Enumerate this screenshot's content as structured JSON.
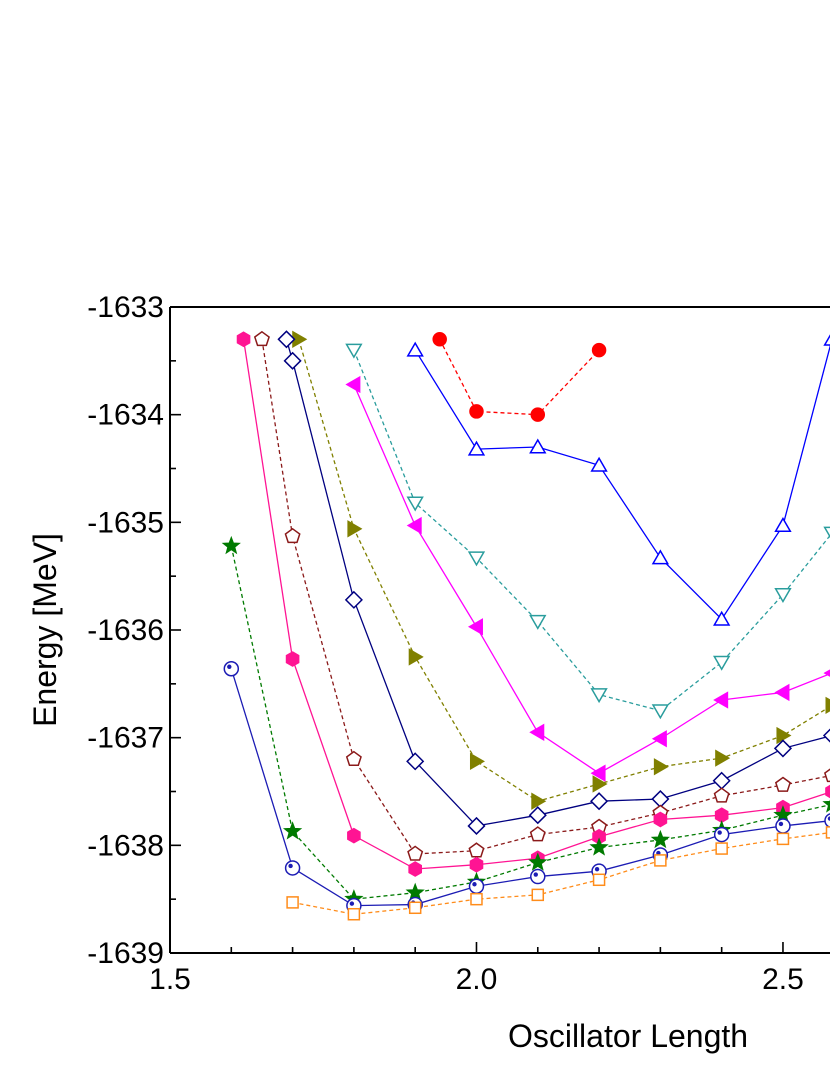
{
  "chart_data": {
    "type": "line",
    "xlabel": "Oscillator Length",
    "ylabel": "Energy [MeV]",
    "xlim": [
      1.5,
      2.58
    ],
    "ylim": [
      -1639,
      -1633
    ],
    "x_ticks": [
      1.5,
      2.0,
      2.5
    ],
    "x_tick_labels": [
      "1.5",
      "2.0",
      "2.5"
    ],
    "y_ticks": [
      -1633,
      -1634,
      -1635,
      -1636,
      -1637,
      -1638,
      -1639
    ],
    "y_tick_labels": [
      "-1633",
      "-1634",
      "-1635",
      "-1636",
      "-1637",
      "-1638",
      "-1639"
    ],
    "grid": false,
    "legend": "none",
    "series": [
      {
        "color": "#ff0000",
        "marker": "circle-filled",
        "dash": true,
        "x": [
          1.94,
          2.0,
          2.1,
          2.2
        ],
        "y": [
          -1633.3,
          -1633.97,
          -1634.0,
          -1633.4
        ]
      },
      {
        "color": "#0000ff",
        "marker": "triangle-up-open",
        "dash": false,
        "x": [
          1.9,
          2.0,
          2.1,
          2.2,
          2.3,
          2.4,
          2.5,
          2.58
        ],
        "y": [
          -1633.4,
          -1634.32,
          -1634.3,
          -1634.47,
          -1635.33,
          -1635.9,
          -1635.03,
          -1633.3
        ]
      },
      {
        "color": "#2a9d9d",
        "marker": "triangle-down-open",
        "dash": true,
        "x": [
          1.8,
          1.9,
          2.0,
          2.1,
          2.2,
          2.3,
          2.4,
          2.5,
          2.58
        ],
        "y": [
          -1633.4,
          -1634.82,
          -1635.33,
          -1635.92,
          -1636.6,
          -1636.75,
          -1636.3,
          -1635.67,
          -1635.1
        ]
      },
      {
        "color": "#ff00ff",
        "marker": "triangle-left-filled",
        "dash": false,
        "x": [
          1.8,
          1.9,
          2.0,
          2.1,
          2.2,
          2.3,
          2.4,
          2.5,
          2.58
        ],
        "y": [
          -1633.72,
          -1635.03,
          -1635.97,
          -1636.95,
          -1637.33,
          -1637.01,
          -1636.65,
          -1636.58,
          -1636.4
        ]
      },
      {
        "color": "#808000",
        "marker": "triangle-right-filled",
        "dash": true,
        "x": [
          1.71,
          1.8,
          1.9,
          2.0,
          2.1,
          2.2,
          2.3,
          2.4,
          2.5,
          2.58
        ],
        "y": [
          -1633.3,
          -1635.06,
          -1636.25,
          -1637.22,
          -1637.59,
          -1637.43,
          -1637.27,
          -1637.19,
          -1636.98,
          -1636.7
        ]
      },
      {
        "color": "#000080",
        "marker": "diamond-open",
        "dash": false,
        "x": [
          1.69,
          1.7,
          1.8,
          1.9,
          2.0,
          2.1,
          2.2,
          2.3,
          2.4,
          2.5,
          2.58
        ],
        "y": [
          -1633.3,
          -1633.5,
          -1635.72,
          -1637.22,
          -1637.82,
          -1637.72,
          -1637.59,
          -1637.57,
          -1637.4,
          -1637.1,
          -1636.98
        ]
      },
      {
        "color": "#8b1a1a",
        "marker": "pentagon-open",
        "dash": true,
        "x": [
          1.65,
          1.7,
          1.8,
          1.9,
          2.0,
          2.1,
          2.2,
          2.3,
          2.4,
          2.5,
          2.58
        ],
        "y": [
          -1633.3,
          -1635.13,
          -1637.2,
          -1638.08,
          -1638.05,
          -1637.9,
          -1637.83,
          -1637.7,
          -1637.54,
          -1637.44,
          -1637.35
        ]
      },
      {
        "color": "#ff1493",
        "marker": "hexagon-filled",
        "dash": false,
        "x": [
          1.62,
          1.7,
          1.8,
          1.9,
          2.0,
          2.1,
          2.2,
          2.3,
          2.4,
          2.5,
          2.58
        ],
        "y": [
          -1633.3,
          -1636.27,
          -1637.91,
          -1638.22,
          -1638.18,
          -1638.12,
          -1637.92,
          -1637.76,
          -1637.72,
          -1637.65,
          -1637.5
        ]
      },
      {
        "color": "#007a00",
        "marker": "star-filled",
        "dash": true,
        "x": [
          1.6,
          1.7,
          1.8,
          1.9,
          2.0,
          2.1,
          2.2,
          2.3,
          2.4,
          2.5,
          2.58
        ],
        "y": [
          -1635.22,
          -1637.87,
          -1638.5,
          -1638.44,
          -1638.34,
          -1638.16,
          -1638.02,
          -1637.95,
          -1637.86,
          -1637.72,
          -1637.62
        ]
      },
      {
        "color": "#1c1cb4",
        "marker": "circle-dot-open",
        "dash": false,
        "x": [
          1.6,
          1.7,
          1.8,
          1.9,
          2.0,
          2.1,
          2.2,
          2.3,
          2.4,
          2.5,
          2.58
        ],
        "y": [
          -1636.36,
          -1638.21,
          -1638.56,
          -1638.55,
          -1638.38,
          -1638.29,
          -1638.24,
          -1638.09,
          -1637.9,
          -1637.82,
          -1637.77
        ]
      },
      {
        "color": "#ff8c1a",
        "marker": "square-open",
        "dash": true,
        "x": [
          1.7,
          1.8,
          1.9,
          2.0,
          2.1,
          2.2,
          2.3,
          2.4,
          2.5,
          2.58
        ],
        "y": [
          -1638.53,
          -1638.64,
          -1638.58,
          -1638.5,
          -1638.46,
          -1638.32,
          -1638.14,
          -1638.03,
          -1637.94,
          -1637.88
        ]
      }
    ]
  }
}
